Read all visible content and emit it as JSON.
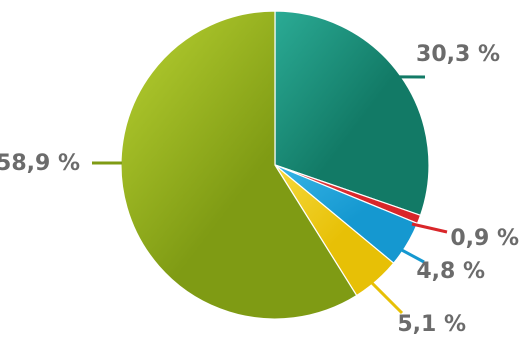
{
  "chart_data": {
    "type": "pie",
    "slices": [
      {
        "label": "30,3 %",
        "value": 30.3,
        "color": "#127a66",
        "shade": "#2bab95"
      },
      {
        "label": "0,9 %",
        "value": 0.9,
        "color": "#d9262a",
        "shade": "#e45053"
      },
      {
        "label": "4,8 %",
        "value": 4.8,
        "color": "#1598d0",
        "shade": "#37b4e6"
      },
      {
        "label": "5,1 %",
        "value": 5.1,
        "color": "#e7c006",
        "shade": "#f5d93c"
      },
      {
        "label": "58,9 %",
        "value": 58.9,
        "color": "#7f9b14",
        "shade": "#b9d232"
      }
    ],
    "legend": "none",
    "title": ""
  }
}
